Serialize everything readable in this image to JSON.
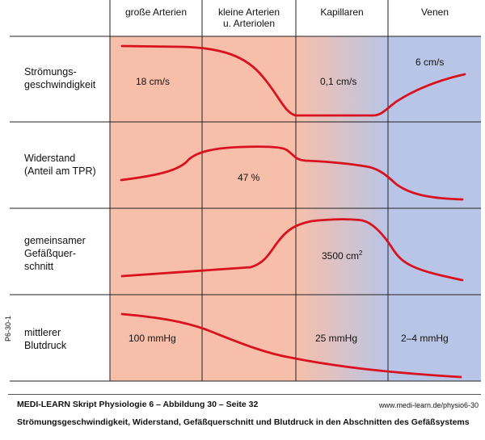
{
  "diagram": {
    "columns": [
      "große Arterien",
      "kleine Arterien",
      "u. Arteriolen",
      "Kapillaren",
      "Venen"
    ],
    "rows": {
      "flow_speed": {
        "label_line1": "Strömungs-",
        "label_line2": "geschwindigkeit",
        "value_arteries": "18 cm/s",
        "value_capillaries": "0,1 cm/s",
        "value_veins": "6 cm/s"
      },
      "resistance": {
        "label_line1": "Widerstand",
        "label_line2": "(Anteil am TPR)",
        "value_arterioles": "47 %"
      },
      "cross_section": {
        "label_line1": "gemeinsamer",
        "label_line2": "Gefäßquer-",
        "label_line3": "schnitt",
        "value_capillaries": "3500 cm",
        "value_capillaries_sup": "2"
      },
      "pressure": {
        "label_line1": "mittlerer",
        "label_line2": "Blutdruck",
        "value_arteries": "100 mmHg",
        "value_capillaries": "25 mmHg",
        "value_veins": "2–4 mmHg"
      }
    },
    "colors": {
      "arterial": "#f7bfaa",
      "venous": "#b9c5e6",
      "curve": "#d8121f",
      "grid": "#222222"
    }
  },
  "side_code": "P6-30-1",
  "footer": {
    "title": "MEDI-LEARN Skript Physiologie 6 – Abbildung 30 – Seite 32",
    "url": "www.medi-learn.de/physio6-30",
    "caption": "Strömungsgeschwindigkeit, Widerstand, Gefäßquerschnitt und Blutdruck in den Abschnitten des Gefäßsystems"
  }
}
